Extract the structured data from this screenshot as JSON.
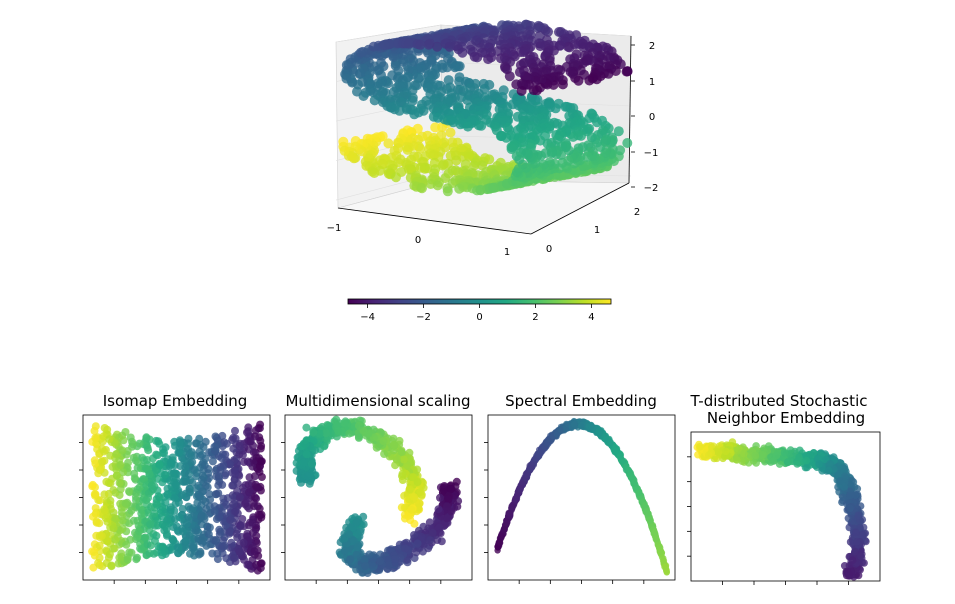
{
  "colormap": "viridis",
  "point_alpha": 0.8,
  "chart_data": [
    {
      "type": "scatter",
      "subtype": "3d",
      "title": "",
      "x_ticks": [
        "−1",
        "0",
        "1"
      ],
      "y_ticks": [
        "0",
        "1",
        "2"
      ],
      "z_ticks": [
        "2",
        "1",
        "0",
        "−1",
        "−2"
      ],
      "xlim": [
        -1,
        1
      ],
      "ylim": [
        0,
        2
      ],
      "zlim": [
        -2,
        2
      ],
      "color_value_range": [
        -4.7,
        4.7
      ],
      "n_points": 1500
    },
    {
      "type": "colorbar",
      "orientation": "horizontal",
      "ticks": [
        "−4",
        "−2",
        "0",
        "2",
        "4"
      ],
      "range": [
        -4.7,
        4.7
      ]
    },
    {
      "type": "scatter",
      "title": "Isomap Embedding",
      "axis_ticks": "unlabeled",
      "n_points": 1000
    },
    {
      "type": "scatter",
      "title": "Multidimensional scaling",
      "axis_ticks": "unlabeled",
      "n_points": 1000
    },
    {
      "type": "scatter",
      "title": "Spectral Embedding",
      "axis_ticks": "unlabeled",
      "n_points": 1000
    },
    {
      "type": "scatter",
      "title_lines": [
        "T-distributed Stochastic",
        "Neighbor Embedding"
      ],
      "axis_ticks": "unlabeled",
      "n_points": 1000
    }
  ]
}
